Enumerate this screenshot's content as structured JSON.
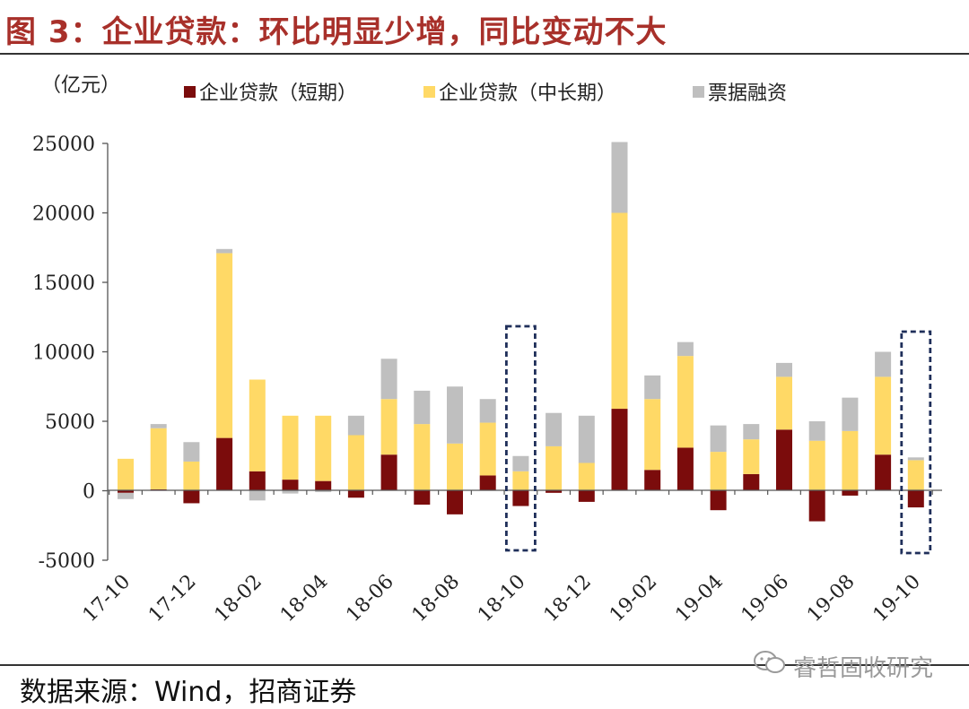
{
  "figure": {
    "title": "图 3：企业贷款：环比明显少增，同比变动不大",
    "source": "数据来源：Wind，招商证券",
    "watermark": "睿哲固收研究"
  },
  "chart_data": {
    "type": "bar",
    "stacked": true,
    "unit_label": "（亿元）",
    "ylim": [
      -5000,
      25000
    ],
    "yticks": [
      25000,
      20000,
      15000,
      10000,
      5000,
      0,
      -5000
    ],
    "categories": [
      "17-10",
      "17-11",
      "17-12",
      "18-01",
      "18-02",
      "18-03",
      "18-04",
      "18-05",
      "18-06",
      "18-07",
      "18-08",
      "18-09",
      "18-10",
      "18-11",
      "18-12",
      "19-01",
      "19-02",
      "19-03",
      "19-04",
      "19-05",
      "19-06",
      "19-07",
      "19-08",
      "19-09",
      "19-10"
    ],
    "xtick_labels": [
      "17-10",
      "17-12",
      "18-02",
      "18-04",
      "18-06",
      "18-08",
      "18-10",
      "18-12",
      "19-02",
      "19-04",
      "19-06",
      "19-08",
      "19-10"
    ],
    "series": [
      {
        "name": "企业贷款（短期）",
        "color": "#7b0c0c",
        "values": [
          -150,
          100,
          -900,
          3800,
          1400,
          800,
          700,
          -500,
          2600,
          -1000,
          -1700,
          1100,
          -1100,
          -150,
          -800,
          5900,
          1500,
          3100,
          -1400,
          1200,
          4400,
          -2200,
          -350,
          2600,
          -1200
        ]
      },
      {
        "name": "企业贷款（中长期）",
        "color": "#ffd966",
        "values": [
          2300,
          4400,
          2100,
          13300,
          6600,
          4600,
          4700,
          4000,
          4000,
          4800,
          3400,
          3800,
          1400,
          3200,
          2000,
          14100,
          5100,
          6600,
          2800,
          2500,
          3800,
          3600,
          4300,
          5600,
          2200
        ]
      },
      {
        "name": "票据融资",
        "color": "#bfbfbf",
        "values": [
          -450,
          300,
          1400,
          300,
          -700,
          -200,
          -100,
          1400,
          2900,
          2400,
          4100,
          1700,
          1100,
          2400,
          3400,
          5100,
          1700,
          1000,
          1900,
          1100,
          1000,
          1400,
          2400,
          1800,
          200
        ]
      }
    ],
    "highlight_boxes": [
      "18-10",
      "19-10"
    ],
    "legend_position": "top"
  }
}
